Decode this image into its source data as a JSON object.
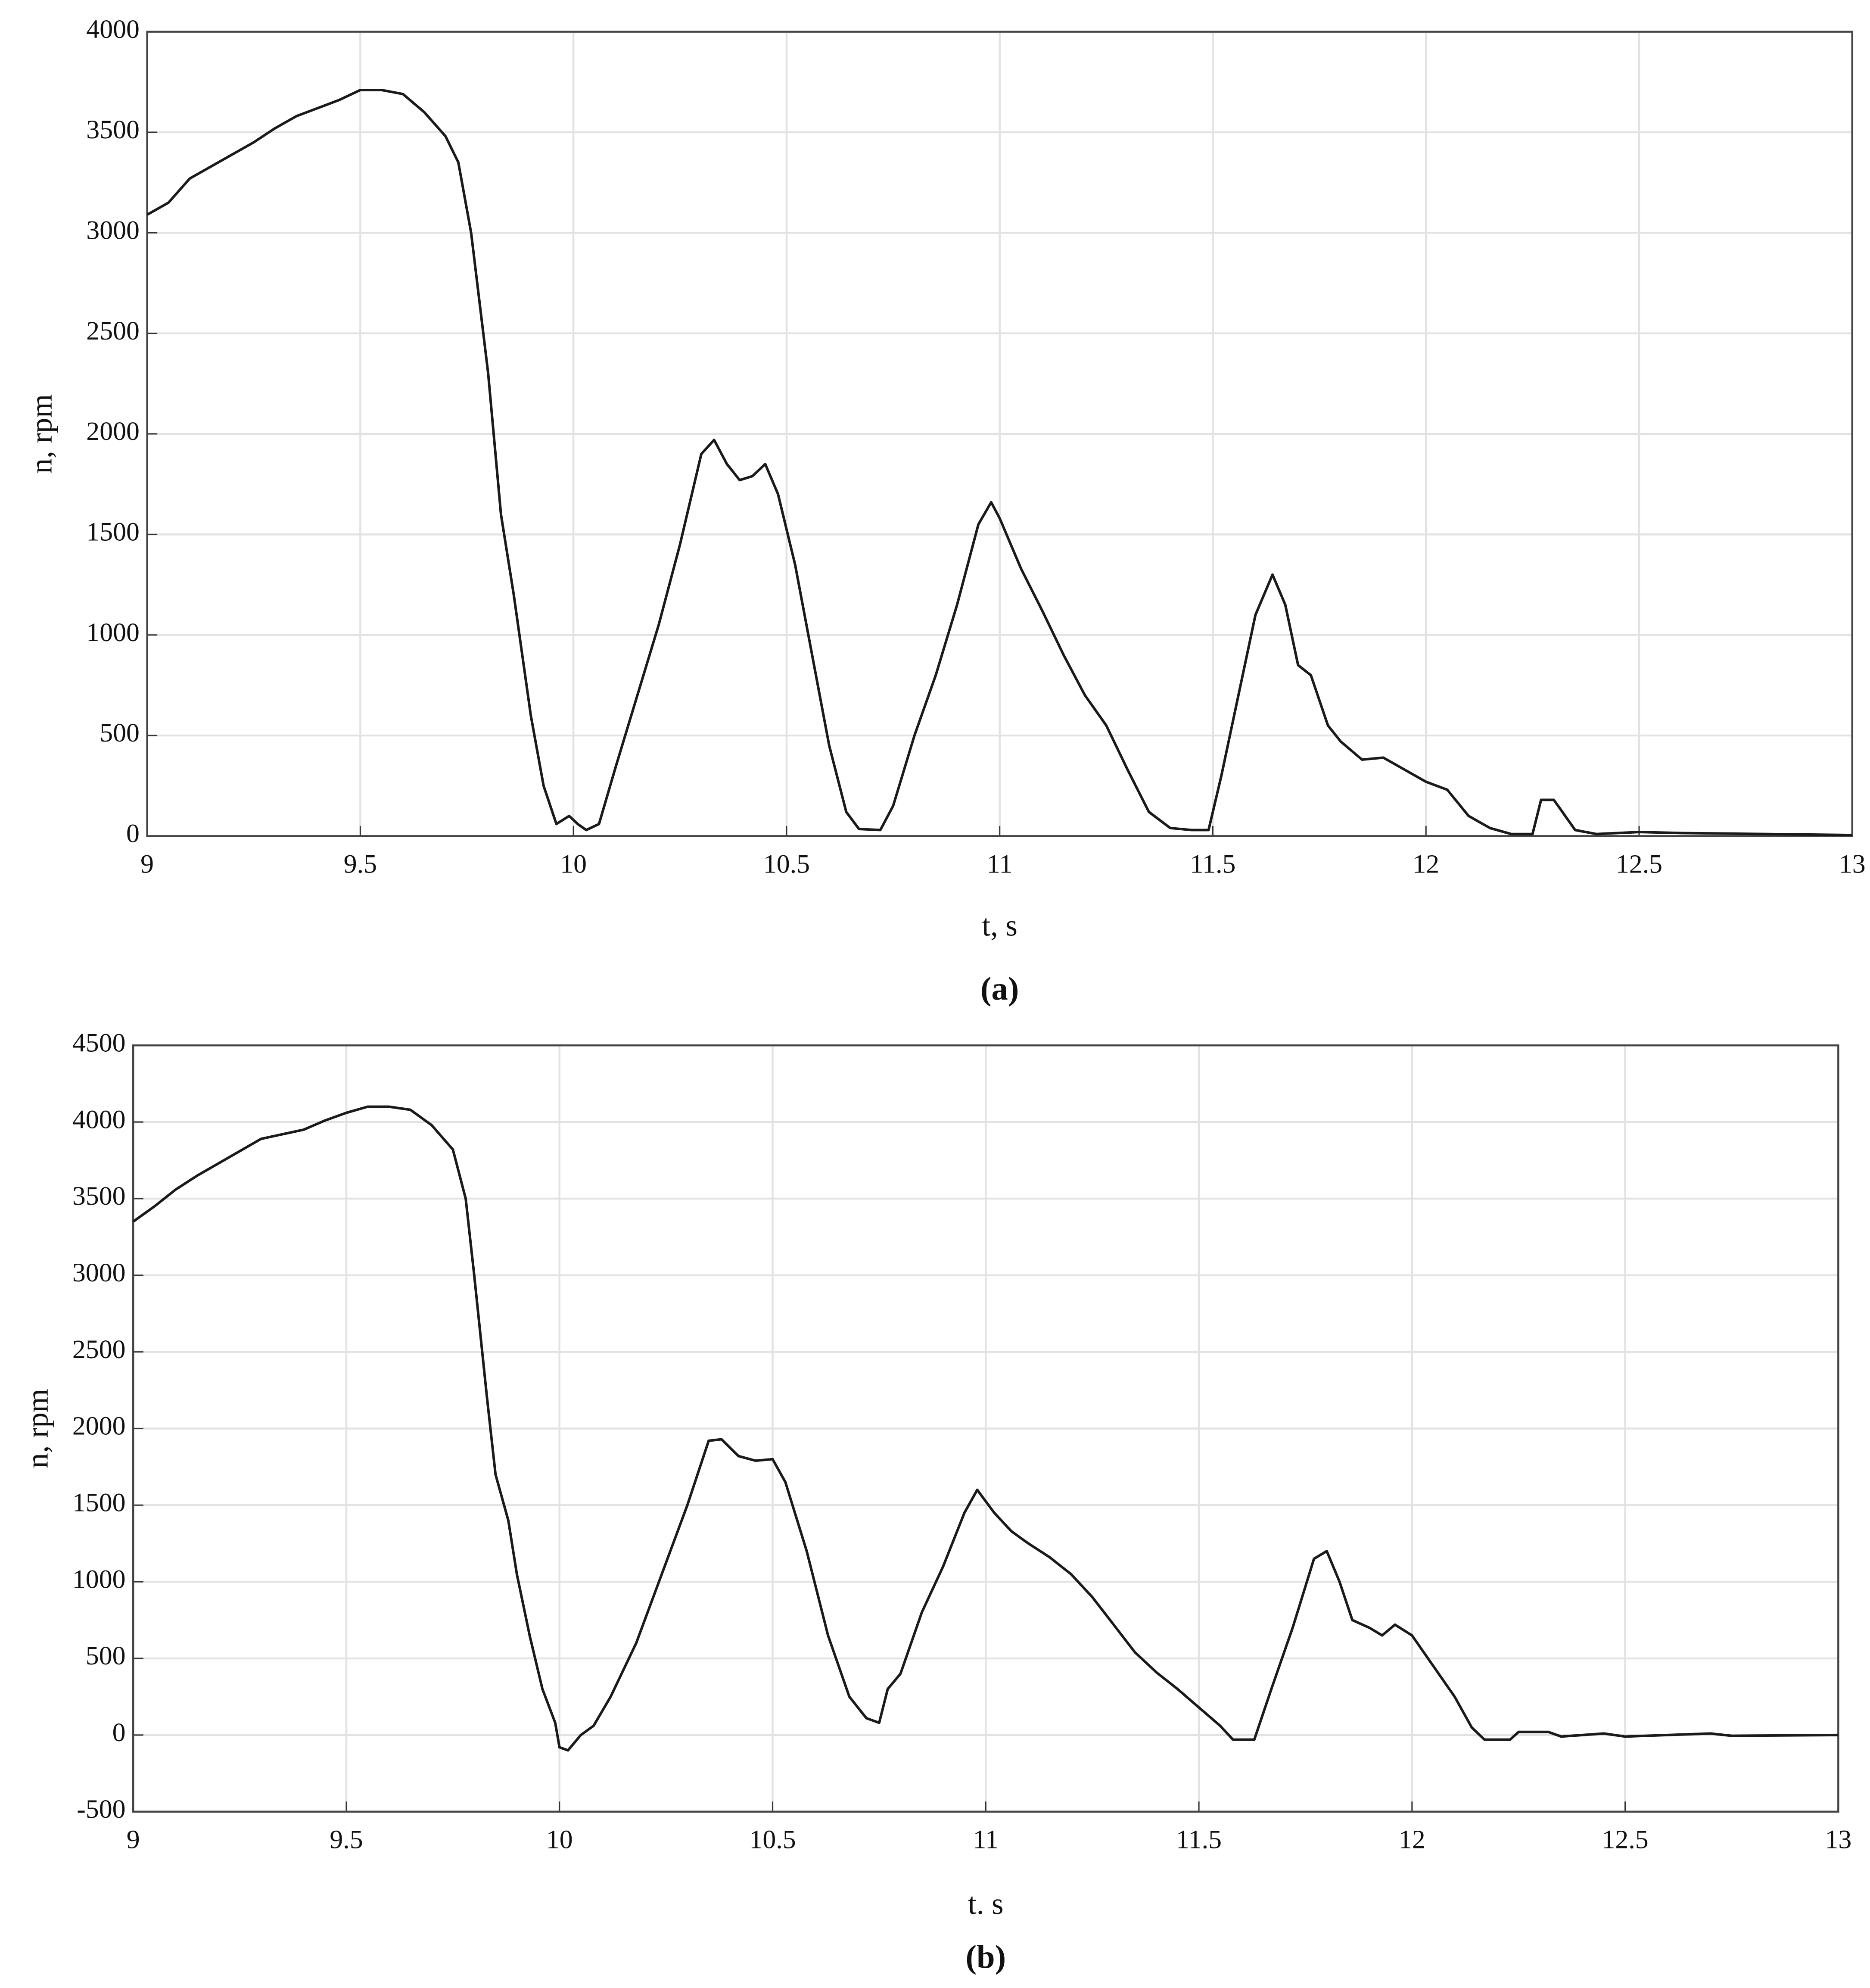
{
  "chart_data": [
    {
      "type": "line",
      "caption": "(a)",
      "xlabel": "t, s",
      "ylabel": "n, rpm",
      "color": "#1a1a1a",
      "grid": true,
      "xlim": [
        9,
        13
      ],
      "xticks": [
        9,
        9.5,
        10,
        10.5,
        11,
        11.5,
        12,
        12.5,
        13
      ],
      "ylim": [
        0,
        4000
      ],
      "yticks": [
        0,
        500,
        1000,
        1500,
        2000,
        2500,
        3000,
        3500,
        4000
      ],
      "x": [
        9.0,
        9.05,
        9.1,
        9.15,
        9.2,
        9.25,
        9.3,
        9.35,
        9.4,
        9.45,
        9.5,
        9.55,
        9.6,
        9.65,
        9.7,
        9.73,
        9.76,
        9.8,
        9.83,
        9.86,
        9.9,
        9.93,
        9.96,
        9.99,
        10.01,
        10.03,
        10.06,
        10.1,
        10.15,
        10.2,
        10.25,
        10.3,
        10.33,
        10.36,
        10.39,
        10.42,
        10.45,
        10.48,
        10.52,
        10.56,
        10.6,
        10.64,
        10.67,
        10.72,
        10.75,
        10.8,
        10.85,
        10.9,
        10.95,
        10.98,
        11.0,
        11.05,
        11.1,
        11.15,
        11.2,
        11.25,
        11.3,
        11.35,
        11.4,
        11.45,
        11.49,
        11.52,
        11.56,
        11.6,
        11.64,
        11.67,
        11.7,
        11.73,
        11.77,
        11.8,
        11.85,
        11.9,
        11.95,
        12.0,
        12.05,
        12.1,
        12.15,
        12.2,
        12.25,
        12.27,
        12.3,
        12.35,
        12.4,
        12.5,
        12.6,
        12.8,
        13.0
      ],
      "values": [
        3090,
        3150,
        3270,
        3330,
        3390,
        3450,
        3520,
        3580,
        3620,
        3660,
        3710,
        3710,
        3690,
        3600,
        3480,
        3350,
        3000,
        2300,
        1600,
        1200,
        600,
        250,
        60,
        100,
        60,
        30,
        60,
        350,
        700,
        1050,
        1450,
        1900,
        1970,
        1850,
        1770,
        1790,
        1850,
        1700,
        1350,
        900,
        450,
        120,
        35,
        30,
        150,
        500,
        800,
        1150,
        1550,
        1660,
        1580,
        1330,
        1120,
        900,
        700,
        550,
        330,
        120,
        40,
        30,
        30,
        300,
        700,
        1100,
        1300,
        1150,
        850,
        800,
        550,
        470,
        380,
        390,
        330,
        270,
        230,
        100,
        40,
        10,
        10,
        180,
        180,
        30,
        10,
        20,
        15,
        10,
        5
      ]
    },
    {
      "type": "line",
      "caption": "(b)",
      "xlabel": "t. s",
      "ylabel": "n, rpm",
      "color": "#1a1a1a",
      "grid": true,
      "xlim": [
        9,
        13
      ],
      "xticks": [
        9,
        9.5,
        10,
        10.5,
        11,
        11.5,
        12,
        12.5,
        13
      ],
      "ylim": [
        -500,
        4500
      ],
      "yticks": [
        -500,
        0,
        500,
        1000,
        1500,
        2000,
        2500,
        3000,
        3500,
        4000,
        4500
      ],
      "x": [
        9.0,
        9.05,
        9.1,
        9.15,
        9.2,
        9.25,
        9.3,
        9.35,
        9.4,
        9.45,
        9.5,
        9.55,
        9.6,
        9.65,
        9.7,
        9.75,
        9.78,
        9.8,
        9.83,
        9.85,
        9.88,
        9.9,
        9.93,
        9.96,
        9.99,
        10.0,
        10.02,
        10.05,
        10.08,
        10.12,
        10.18,
        10.24,
        10.3,
        10.35,
        10.38,
        10.42,
        10.46,
        10.5,
        10.53,
        10.58,
        10.63,
        10.68,
        10.72,
        10.75,
        10.77,
        10.8,
        10.85,
        10.9,
        10.95,
        10.98,
        11.02,
        11.06,
        11.1,
        11.15,
        11.2,
        11.25,
        11.3,
        11.35,
        11.4,
        11.45,
        11.5,
        11.55,
        11.58,
        11.63,
        11.67,
        11.72,
        11.77,
        11.8,
        11.83,
        11.86,
        11.9,
        11.93,
        11.96,
        12.0,
        12.05,
        12.1,
        12.14,
        12.17,
        12.23,
        12.25,
        12.32,
        12.35,
        12.45,
        12.5,
        12.7,
        12.75,
        13.0
      ],
      "values": [
        3350,
        3450,
        3560,
        3650,
        3730,
        3810,
        3890,
        3920,
        3950,
        4010,
        4060,
        4100,
        4100,
        4080,
        3980,
        3820,
        3500,
        3000,
        2200,
        1700,
        1400,
        1050,
        650,
        300,
        80,
        -80,
        -100,
        0,
        60,
        250,
        600,
        1050,
        1500,
        1920,
        1930,
        1820,
        1790,
        1800,
        1650,
        1200,
        650,
        250,
        110,
        80,
        300,
        400,
        800,
        1100,
        1450,
        1600,
        1450,
        1330,
        1250,
        1160,
        1050,
        900,
        720,
        540,
        410,
        300,
        180,
        60,
        -30,
        -30,
        300,
        700,
        1150,
        1200,
        1000,
        750,
        700,
        650,
        720,
        650,
        450,
        250,
        50,
        -30,
        -30,
        20,
        20,
        -10,
        10,
        -10,
        10,
        -5,
        0
      ]
    }
  ]
}
